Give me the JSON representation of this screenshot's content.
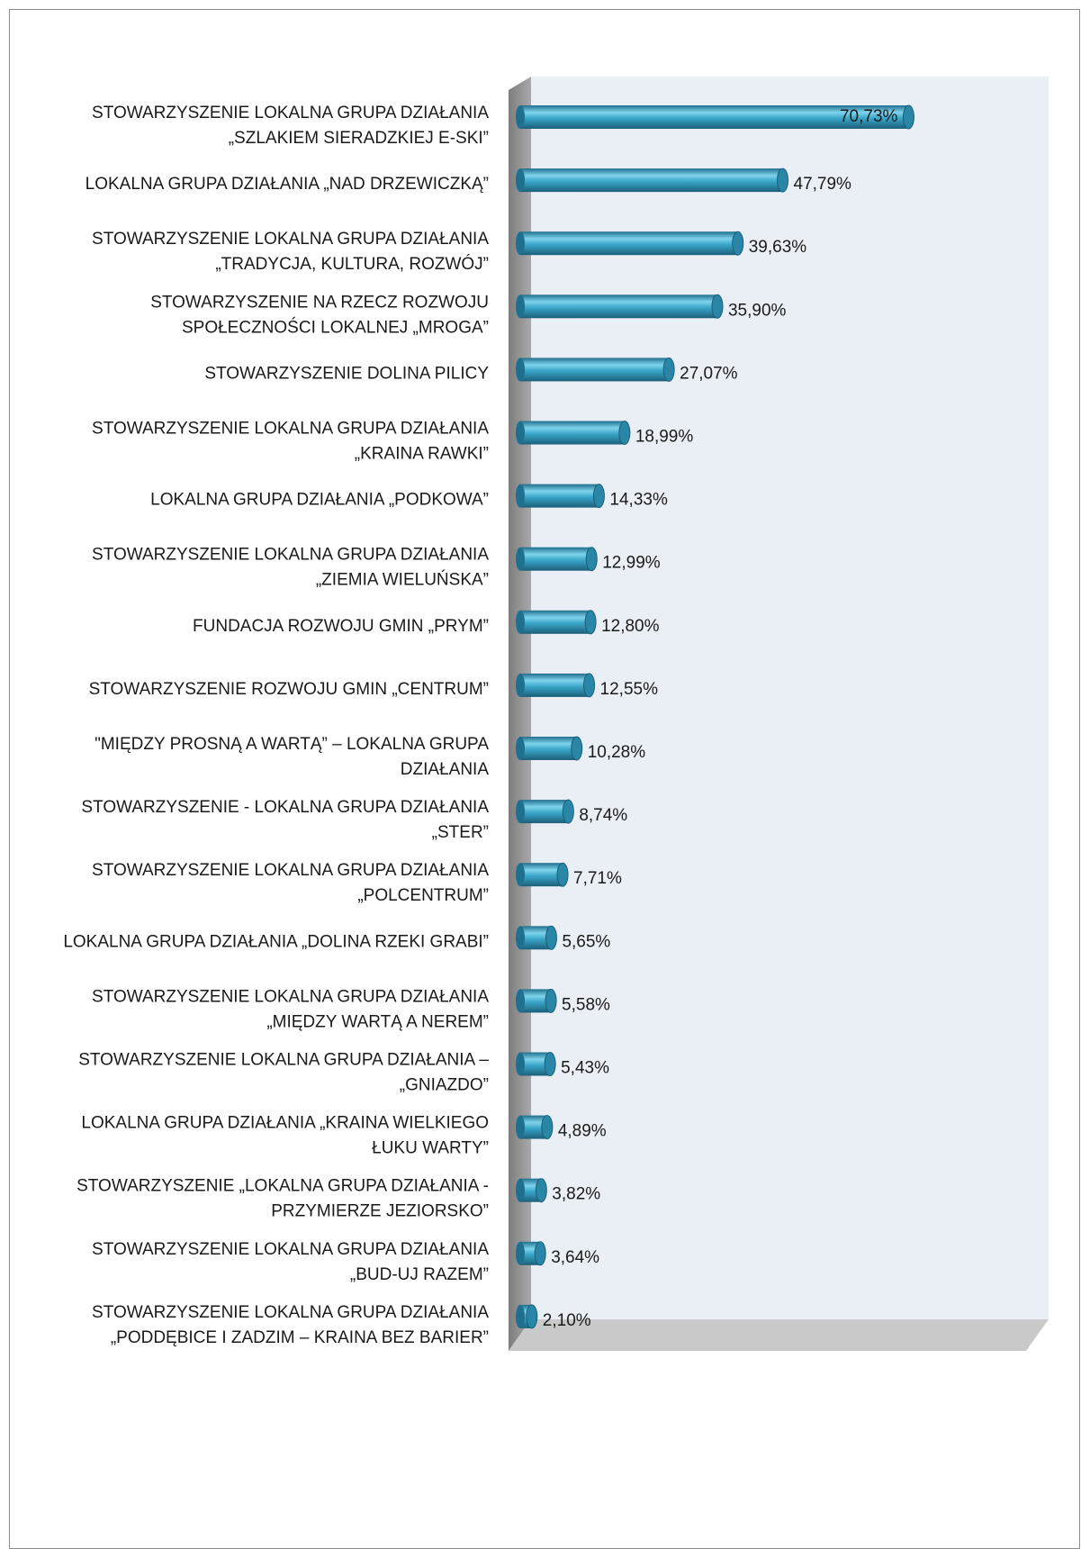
{
  "chart_data": {
    "type": "bar",
    "orientation": "horizontal",
    "color": "#3aa6c8",
    "categories": [
      [
        "STOWARZYSZENIE LOKALNA GRUPA DZIAŁANIA",
        "„SZLAKIEM SIERADZKIEJ E-SKI”"
      ],
      [
        "LOKALNA GRUPA DZIAŁANIA „NAD DRZEWICZKĄ”"
      ],
      [
        "STOWARZYSZENIE LOKALNA GRUPA DZIAŁANIA",
        "„TRADYCJA, KULTURA, ROZWÓJ”"
      ],
      [
        "STOWARZYSZENIE NA RZECZ ROZWOJU",
        "SPOŁECZNOŚCI LOKALNEJ „MROGA”"
      ],
      [
        "STOWARZYSZENIE DOLINA PILICY"
      ],
      [
        "STOWARZYSZENIE LOKALNA GRUPA DZIAŁANIA",
        "„KRAINA RAWKI”"
      ],
      [
        "LOKALNA GRUPA DZIAŁANIA „PODKOWA”"
      ],
      [
        "STOWARZYSZENIE LOKALNA GRUPA DZIAŁANIA",
        "„ZIEMIA WIELUŃSKA”"
      ],
      [
        "FUNDACJA ROZWOJU GMIN „PRYM”"
      ],
      [
        "STOWARZYSZENIE ROZWOJU GMIN „CENTRUM”"
      ],
      [
        "\"MIĘDZY PROSNĄ A WARTĄ” – LOKALNA GRUPA",
        "DZIAŁANIA"
      ],
      [
        "STOWARZYSZENIE - LOKALNA GRUPA DZIAŁANIA",
        "„STER”"
      ],
      [
        "STOWARZYSZENIE LOKALNA GRUPA DZIAŁANIA",
        "„POLCENTRUM”"
      ],
      [
        "LOKALNA GRUPA DZIAŁANIA „DOLINA RZEKI GRABI”"
      ],
      [
        "STOWARZYSZENIE LOKALNA GRUPA DZIAŁANIA",
        "„MIĘDZY WARTĄ A NEREM”"
      ],
      [
        "STOWARZYSZENIE LOKALNA GRUPA DZIAŁANIA –",
        "„GNIAZDO”"
      ],
      [
        "LOKALNA GRUPA DZIAŁANIA „KRAINA WIELKIEGO",
        "ŁUKU WARTY”"
      ],
      [
        "STOWARZYSZENIE „LOKALNA GRUPA DZIAŁANIA -",
        "PRZYMIERZE JEZIORSKO”"
      ],
      [
        "STOWARZYSZENIE LOKALNA GRUPA DZIAŁANIA",
        "„BUD-UJ RAZEM”"
      ],
      [
        "STOWARZYSZENIE LOKALNA GRUPA DZIAŁANIA",
        "„PODDĘBICE I ZADZIM – KRAINA BEZ BARIER”"
      ]
    ],
    "values": [
      70.73,
      47.79,
      39.63,
      35.9,
      27.07,
      18.99,
      14.33,
      12.99,
      12.8,
      12.55,
      10.28,
      8.74,
      7.71,
      5.65,
      5.58,
      5.43,
      4.89,
      3.82,
      3.64,
      2.1
    ],
    "value_labels": [
      "70,73%",
      "47,79%",
      "39,63%",
      "35,90%",
      "27,07%",
      "18,99%",
      "14,33%",
      "12,99%",
      "12,80%",
      "12,55%",
      "10,28%",
      "8,74%",
      "7,71%",
      "5,65%",
      "5,58%",
      "5,43%",
      "4,89%",
      "3,82%",
      "3,64%",
      "2,10%"
    ]
  }
}
